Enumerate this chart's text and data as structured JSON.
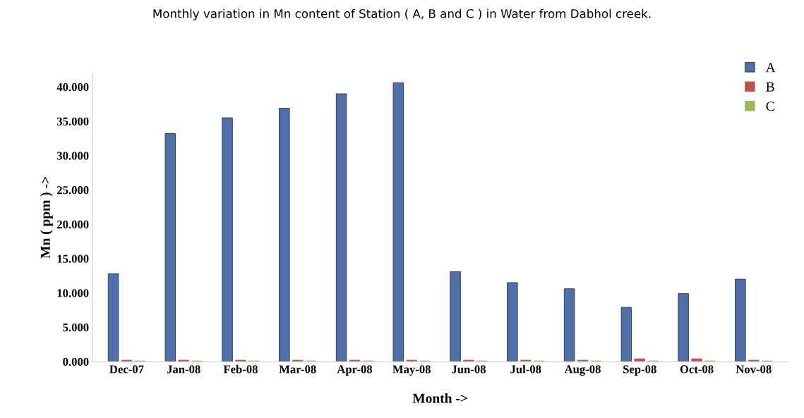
{
  "chart_data": {
    "type": "bar",
    "title": "Monthly variation in Mn content of Station ( A, B and C ) in Water from Dabhol creek.",
    "xlabel": "Month ->",
    "ylabel": "Mn ( ppm ) ->",
    "categories": [
      "Dec-07",
      "Jan-08",
      "Feb-08",
      "Mar-08",
      "Apr-08",
      "May-08",
      "Jun-08",
      "Jul-08",
      "Aug-08",
      "Sep-08",
      "Oct-08",
      "Nov-08"
    ],
    "series": [
      {
        "name": "A",
        "color": "#4f6fa8",
        "values": [
          12.8,
          33.2,
          35.5,
          36.9,
          39.0,
          40.6,
          13.1,
          11.5,
          10.6,
          7.9,
          9.9,
          12.0
        ]
      },
      {
        "name": "B",
        "color": "#c0504d",
        "values": [
          0.2,
          0.2,
          0.2,
          0.2,
          0.2,
          0.2,
          0.2,
          0.2,
          0.2,
          0.4,
          0.4,
          0.2
        ]
      },
      {
        "name": "C",
        "color": "#9bbb59",
        "values": [
          0.1,
          0.1,
          0.1,
          0.1,
          0.1,
          0.1,
          0.1,
          0.1,
          0.1,
          0.1,
          0.1,
          0.1
        ]
      }
    ],
    "ylim": [
      0,
      42
    ],
    "yticks": [
      {
        "value": 0,
        "label": "0.000"
      },
      {
        "value": 5,
        "label": "5.000"
      },
      {
        "value": 10,
        "label": "10.000"
      },
      {
        "value": 15,
        "label": "15.000"
      },
      {
        "value": 20,
        "label": "20.000"
      },
      {
        "value": 25,
        "label": "25.000"
      },
      {
        "value": 30,
        "label": "30.000"
      },
      {
        "value": 35,
        "label": "35.000"
      },
      {
        "value": 40,
        "label": "40.000"
      }
    ],
    "grid": false,
    "legend": "top right"
  }
}
